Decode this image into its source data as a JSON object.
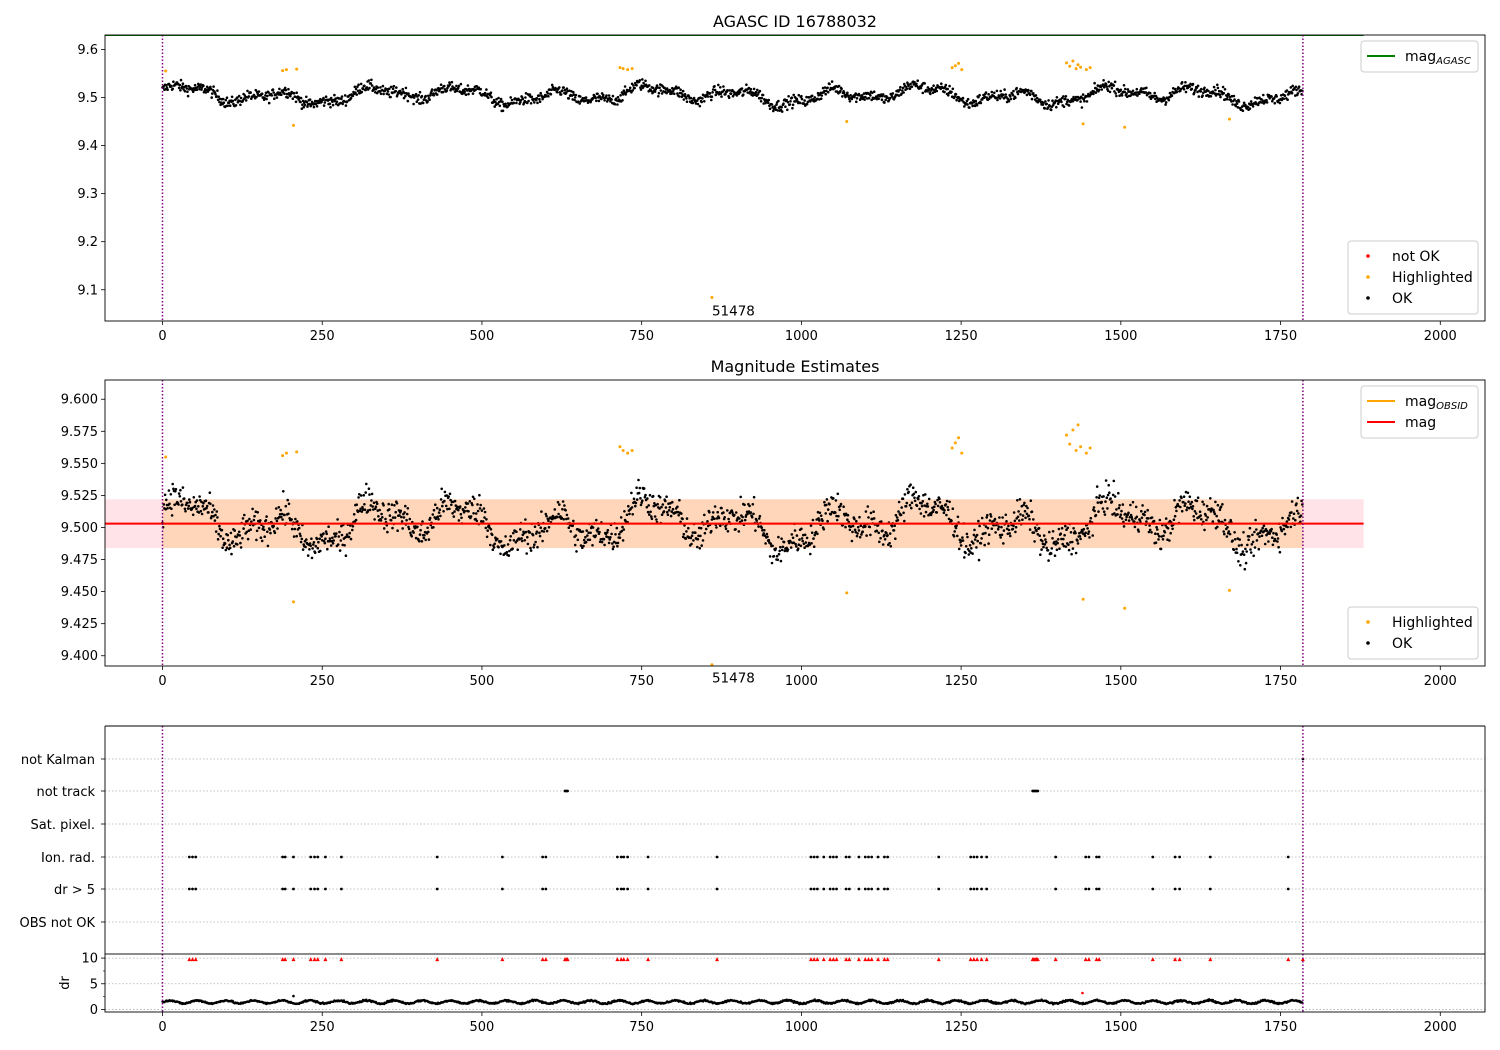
{
  "figure": {
    "background": "#ffffff"
  },
  "chart_data": [
    {
      "id": "agasc",
      "type": "scatter",
      "title": "AGASC ID 16788032",
      "xlim": [
        -90,
        2070
      ],
      "ylim": [
        9.035,
        9.63
      ],
      "xticks": [
        0,
        250,
        500,
        750,
        1000,
        1250,
        1500,
        1750,
        2000
      ],
      "yticks": [
        9.1,
        9.2,
        9.3,
        9.4,
        9.5,
        9.6
      ],
      "ytick_decimals": 1,
      "lines": [
        {
          "name": "mag_AGASC",
          "y": 9.63,
          "x": [
            -90,
            1880
          ],
          "color": "#008000"
        }
      ],
      "vlines": {
        "x": [
          0,
          1785
        ],
        "color": "#800080",
        "style": "dotted"
      },
      "series_ok": {
        "name": "OK",
        "color": "#000000",
        "baseline": 9.505,
        "noise": 0.014,
        "n": 1785,
        "xmax": 1785
      },
      "highlighted": {
        "name": "Highlighted",
        "color": "#ffa500",
        "points": [
          [
            5,
            9.555
          ],
          [
            188,
            9.556
          ],
          [
            194,
            9.558
          ],
          [
            205,
            9.442
          ],
          [
            210,
            9.559
          ],
          [
            716,
            9.562
          ],
          [
            721,
            9.56
          ],
          [
            728,
            9.558
          ],
          [
            735,
            9.56
          ],
          [
            860,
            9.084
          ],
          [
            1071,
            9.45
          ],
          [
            1236,
            9.562
          ],
          [
            1241,
            9.566
          ],
          [
            1246,
            9.571
          ],
          [
            1251,
            9.558
          ],
          [
            1415,
            9.572
          ],
          [
            1420,
            9.565
          ],
          [
            1425,
            9.576
          ],
          [
            1430,
            9.56
          ],
          [
            1433,
            9.568
          ],
          [
            1437,
            9.563
          ],
          [
            1441,
            9.445
          ],
          [
            1446,
            9.558
          ],
          [
            1452,
            9.562
          ],
          [
            1506,
            9.438
          ],
          [
            1670,
            9.455
          ]
        ]
      },
      "not_ok": {
        "name": "not OK",
        "color": "#ff0000",
        "points": []
      },
      "annotations": [
        {
          "text": "51478",
          "x": 860,
          "y": 9.084
        }
      ],
      "legends": [
        {
          "position": "top-right",
          "items": [
            {
              "label": "mag",
              "sub": "AGASC",
              "type": "line",
              "color": "#008000"
            }
          ]
        },
        {
          "position": "bottom-right",
          "items": [
            {
              "label": "not OK",
              "type": "dot",
              "color": "#ff0000"
            },
            {
              "label": "Highlighted",
              "type": "dot",
              "color": "#ffa500"
            },
            {
              "label": "OK",
              "type": "dot",
              "color": "#000000"
            }
          ]
        }
      ]
    },
    {
      "id": "estimates",
      "type": "scatter",
      "title": "Magnitude Estimates",
      "xlim": [
        -90,
        2070
      ],
      "ylim": [
        9.392,
        9.615
      ],
      "xticks": [
        0,
        250,
        500,
        750,
        1000,
        1250,
        1500,
        1750,
        2000
      ],
      "yticks": [
        9.4,
        9.425,
        9.45,
        9.475,
        9.5,
        9.525,
        9.55,
        9.575,
        9.6
      ],
      "ytick_decimals": 3,
      "bands": [
        {
          "x": [
            -90,
            1880
          ],
          "y": [
            9.484,
            9.522
          ],
          "color": "#ffc0cb",
          "opacity": 0.45
        },
        {
          "x": [
            0,
            1785
          ],
          "y": [
            9.484,
            9.522
          ],
          "color": "#ffa500",
          "opacity": 0.2
        }
      ],
      "lines": [
        {
          "name": "mag_OBSID",
          "y": 9.503,
          "x": [
            0,
            1785
          ],
          "color": "#ffa500"
        },
        {
          "name": "mag",
          "y": 9.503,
          "x": [
            -90,
            1880
          ],
          "color": "#ff0000"
        }
      ],
      "vlines": {
        "x": [
          0,
          1785
        ],
        "color": "#800080",
        "style": "dotted"
      },
      "series_ok": {
        "name": "OK",
        "color": "#000000",
        "baseline": 9.503,
        "noise": 0.014,
        "n": 1785,
        "xmax": 1785
      },
      "highlighted": {
        "name": "Highlighted",
        "color": "#ffa500",
        "points": [
          [
            5,
            9.555
          ],
          [
            188,
            9.556
          ],
          [
            194,
            9.558
          ],
          [
            205,
            9.442
          ],
          [
            210,
            9.559
          ],
          [
            716,
            9.563
          ],
          [
            721,
            9.56
          ],
          [
            728,
            9.558
          ],
          [
            735,
            9.56
          ],
          [
            860,
            9.393
          ],
          [
            1071,
            9.449
          ],
          [
            1236,
            9.562
          ],
          [
            1241,
            9.566
          ],
          [
            1246,
            9.57
          ],
          [
            1251,
            9.558
          ],
          [
            1415,
            9.572
          ],
          [
            1420,
            9.565
          ],
          [
            1425,
            9.576
          ],
          [
            1430,
            9.56
          ],
          [
            1433,
            9.58
          ],
          [
            1437,
            9.563
          ],
          [
            1441,
            9.444
          ],
          [
            1446,
            9.558
          ],
          [
            1452,
            9.562
          ],
          [
            1506,
            9.437
          ],
          [
            1670,
            9.451
          ]
        ]
      },
      "annotations": [
        {
          "text": "51478",
          "x": 860,
          "y": 9.393
        }
      ],
      "legends": [
        {
          "position": "top-right",
          "items": [
            {
              "label": "mag",
              "sub": "OBSID",
              "type": "line",
              "color": "#ffa500"
            },
            {
              "label": "mag",
              "type": "line",
              "color": "#ff0000"
            }
          ]
        },
        {
          "position": "bottom-right",
          "items": [
            {
              "label": "Highlighted",
              "type": "dot",
              "color": "#ffa500"
            },
            {
              "label": "OK",
              "type": "dot",
              "color": "#000000"
            }
          ]
        }
      ]
    },
    {
      "id": "flags",
      "type": "scatter",
      "title": "",
      "xlim": [
        -90,
        2070
      ],
      "xticks": [
        0,
        250,
        500,
        750,
        1000,
        1250,
        1500,
        1750,
        2000
      ],
      "categories": [
        "not Kalman",
        "not track",
        "Sat. pixel.",
        "Ion. rad.",
        "dr > 5",
        "OBS not OK"
      ],
      "vlines": {
        "x": [
          0,
          1785
        ],
        "color": "#800080",
        "style": "dotted"
      },
      "flag_points": {
        "not Kalman": [
          1785
        ],
        "not track": [
          630,
          632,
          634,
          1362,
          1364,
          1366,
          1368,
          1370
        ],
        "Sat. pixel.": [],
        "Ion. rad.": [
          42,
          47,
          52,
          188,
          192,
          205,
          232,
          238,
          243,
          255,
          280,
          430,
          532,
          595,
          600,
          712,
          718,
          722,
          728,
          760,
          868,
          1015,
          1020,
          1025,
          1035,
          1045,
          1050,
          1055,
          1070,
          1075,
          1090,
          1100,
          1105,
          1110,
          1120,
          1130,
          1135,
          1215,
          1265,
          1270,
          1275,
          1282,
          1290,
          1398,
          1445,
          1450,
          1462,
          1466,
          1550,
          1585,
          1592,
          1640,
          1762
        ],
        "dr > 5": [
          42,
          47,
          52,
          188,
          192,
          205,
          232,
          238,
          243,
          255,
          280,
          430,
          532,
          595,
          600,
          712,
          718,
          722,
          728,
          760,
          868,
          1015,
          1020,
          1025,
          1035,
          1045,
          1050,
          1055,
          1070,
          1075,
          1090,
          1100,
          1105,
          1110,
          1120,
          1130,
          1135,
          1215,
          1265,
          1270,
          1275,
          1282,
          1290,
          1398,
          1445,
          1450,
          1462,
          1466,
          1550,
          1585,
          1592,
          1640,
          1762
        ],
        "OBS not OK": []
      }
    },
    {
      "id": "dr",
      "type": "scatter",
      "ylabel": "dr",
      "xlim": [
        -90,
        2070
      ],
      "ylim": [
        -0.5,
        10.8
      ],
      "xticks": [
        0,
        250,
        500,
        750,
        1000,
        1250,
        1500,
        1750,
        2000
      ],
      "yticks": [
        0,
        5,
        10
      ],
      "vlines": {
        "x": [
          0,
          1785
        ],
        "color": "#800080",
        "style": "dotted"
      },
      "series": {
        "baseline": 1.45,
        "noise": 0.35,
        "n": 1785,
        "xmax": 1785,
        "color": "#000000"
      },
      "outliers": [
        [
          205,
          2.6
        ],
        [
          1440,
          3.2
        ]
      ],
      "clipped": {
        "y": 9.8,
        "color": "#ff0000",
        "x": [
          42,
          47,
          52,
          188,
          192,
          205,
          232,
          238,
          243,
          255,
          280,
          430,
          532,
          595,
          600,
          630,
          632,
          634,
          712,
          718,
          722,
          728,
          760,
          868,
          1015,
          1020,
          1025,
          1035,
          1045,
          1050,
          1055,
          1070,
          1075,
          1090,
          1100,
          1105,
          1110,
          1120,
          1130,
          1135,
          1215,
          1265,
          1270,
          1275,
          1282,
          1290,
          1362,
          1364,
          1366,
          1368,
          1370,
          1398,
          1445,
          1450,
          1462,
          1466,
          1550,
          1585,
          1592,
          1640,
          1762,
          1785
        ]
      }
    }
  ]
}
